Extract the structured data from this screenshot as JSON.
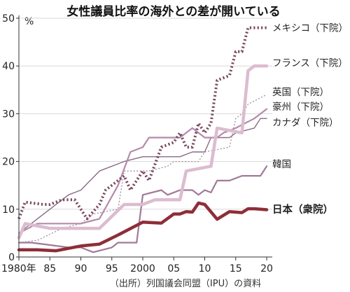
{
  "chart_data": {
    "type": "line",
    "title": "女性議員比率の海外との差が開いている",
    "unit": "%",
    "source": "（出所）列国議会同盟（IPU）の資料",
    "xlim": [
      1980,
      2020
    ],
    "ylim": [
      0,
      50
    ],
    "x_ticks": [
      {
        "value": 1980,
        "label": "1980年"
      },
      {
        "value": 1985,
        "label": "85"
      },
      {
        "value": 1990,
        "label": "90"
      },
      {
        "value": 1995,
        "label": "95"
      },
      {
        "value": 2000,
        "label": "2000"
      },
      {
        "value": 2005,
        "label": "05"
      },
      {
        "value": 2010,
        "label": "10"
      },
      {
        "value": 2015,
        "label": "15"
      },
      {
        "value": 2020,
        "label": "20"
      }
    ],
    "y_ticks": [
      0,
      10,
      20,
      30,
      40,
      50
    ],
    "series": [
      {
        "name": "メキシコ（下院）",
        "color": "#7a4a60",
        "style": "dotted-thick",
        "label_value": 48,
        "points": [
          [
            1980,
            8
          ],
          [
            1981,
            11.5
          ],
          [
            1984,
            11
          ],
          [
            1985,
            11
          ],
          [
            1987,
            12
          ],
          [
            1989,
            12
          ],
          [
            1990,
            10
          ],
          [
            1991,
            8
          ],
          [
            1993,
            11
          ],
          [
            1994,
            14
          ],
          [
            1997,
            17
          ],
          [
            1998,
            14
          ],
          [
            2000,
            18
          ],
          [
            2001,
            16
          ],
          [
            2003,
            23
          ],
          [
            2005,
            24
          ],
          [
            2006,
            26
          ],
          [
            2007,
            23
          ],
          [
            2008,
            23
          ],
          [
            2009,
            28
          ],
          [
            2010,
            26
          ],
          [
            2011,
            28
          ],
          [
            2012,
            37
          ],
          [
            2014,
            38
          ],
          [
            2015,
            43
          ],
          [
            2016,
            43
          ],
          [
            2017,
            48
          ],
          [
            2020,
            48
          ]
        ]
      },
      {
        "name": "フランス（下院）",
        "color": "#dcbcd0",
        "style": "thick",
        "label_value": 40,
        "points": [
          [
            1980,
            4
          ],
          [
            1981,
            7
          ],
          [
            1985,
            6
          ],
          [
            1988,
            6
          ],
          [
            1993,
            6
          ],
          [
            1997,
            11
          ],
          [
            2000,
            11
          ],
          [
            2002,
            12
          ],
          [
            2006,
            12
          ],
          [
            2007,
            18
          ],
          [
            2011,
            19
          ],
          [
            2012,
            27
          ],
          [
            2016,
            26
          ],
          [
            2017,
            39
          ],
          [
            2018,
            40
          ],
          [
            2020,
            40
          ]
        ]
      },
      {
        "name": "英国（下院）",
        "color": "#a58aa0",
        "style": "dotted-thin",
        "label_value": 34,
        "points": [
          [
            1980,
            3
          ],
          [
            1983,
            3.5
          ],
          [
            1987,
            6
          ],
          [
            1990,
            7
          ],
          [
            1992,
            9
          ],
          [
            1996,
            10
          ],
          [
            1997,
            18
          ],
          [
            2000,
            18
          ],
          [
            2001,
            18
          ],
          [
            2004,
            19
          ],
          [
            2005,
            20
          ],
          [
            2009,
            20
          ],
          [
            2010,
            22
          ],
          [
            2014,
            23
          ],
          [
            2015,
            29
          ],
          [
            2016,
            30
          ],
          [
            2017,
            32
          ],
          [
            2020,
            34
          ]
        ]
      },
      {
        "name": "豪州（下院）",
        "color": "#b58aaa",
        "style": "medium",
        "label_value": 31,
        "points": [
          [
            1980,
            5
          ],
          [
            1983,
            7
          ],
          [
            1986,
            7
          ],
          [
            1990,
            7
          ],
          [
            1993,
            8
          ],
          [
            1996,
            15
          ],
          [
            1998,
            22
          ],
          [
            2000,
            23
          ],
          [
            2001,
            25
          ],
          [
            2003,
            25
          ],
          [
            2004,
            25
          ],
          [
            2006,
            25
          ],
          [
            2008,
            27
          ],
          [
            2010,
            25
          ],
          [
            2012,
            25
          ],
          [
            2013,
            26
          ],
          [
            2015,
            27
          ],
          [
            2018,
            29
          ],
          [
            2020,
            31
          ]
        ]
      },
      {
        "name": "カナダ（下院）",
        "color": "#8a6a86",
        "style": "thin",
        "label_value": 29,
        "points": [
          [
            1980,
            5
          ],
          [
            1984,
            9
          ],
          [
            1988,
            13
          ],
          [
            1990,
            14
          ],
          [
            1993,
            18
          ],
          [
            1997,
            20
          ],
          [
            2000,
            21
          ],
          [
            2002,
            21
          ],
          [
            2004,
            21
          ],
          [
            2006,
            21
          ],
          [
            2008,
            22
          ],
          [
            2010,
            22
          ],
          [
            2011,
            25
          ],
          [
            2014,
            25
          ],
          [
            2015,
            26
          ],
          [
            2018,
            27
          ],
          [
            2019,
            29
          ],
          [
            2020,
            29
          ]
        ]
      },
      {
        "name": "韓国",
        "color": "#a07a98",
        "style": "medium",
        "label_value": 19,
        "points": [
          [
            1980,
            3
          ],
          [
            1982,
            3
          ],
          [
            1985,
            2.5
          ],
          [
            1988,
            2
          ],
          [
            1990,
            2
          ],
          [
            1992,
            1
          ],
          [
            1995,
            2
          ],
          [
            1996,
            3
          ],
          [
            1999,
            3
          ],
          [
            2000,
            13
          ],
          [
            2003,
            14
          ],
          [
            2004,
            13
          ],
          [
            2006,
            14
          ],
          [
            2008,
            14
          ],
          [
            2009,
            13
          ],
          [
            2010,
            14
          ],
          [
            2011,
            13.5
          ],
          [
            2012,
            16
          ],
          [
            2014,
            16
          ],
          [
            2016,
            17
          ],
          [
            2018,
            17
          ],
          [
            2019,
            17
          ],
          [
            2020,
            19
          ]
        ]
      },
      {
        "name": "日本（衆院）",
        "color": "#8e2e38",
        "style": "thick",
        "bold_label": true,
        "label_value": 10,
        "points": [
          [
            1980,
            1.5
          ],
          [
            1983,
            1.5
          ],
          [
            1986,
            1.3
          ],
          [
            1990,
            2.3
          ],
          [
            1993,
            2.7
          ],
          [
            1996,
            4.6
          ],
          [
            2000,
            7.3
          ],
          [
            2003,
            7.1
          ],
          [
            2005,
            9
          ],
          [
            2006,
            9
          ],
          [
            2007,
            9.5
          ],
          [
            2008,
            9.4
          ],
          [
            2009,
            11.3
          ],
          [
            2010,
            11
          ],
          [
            2012,
            7.9
          ],
          [
            2014,
            9.5
          ],
          [
            2016,
            9.3
          ],
          [
            2017,
            10.1
          ],
          [
            2018,
            10.1
          ],
          [
            2019,
            10
          ],
          [
            2020,
            9.9
          ]
        ]
      }
    ]
  }
}
